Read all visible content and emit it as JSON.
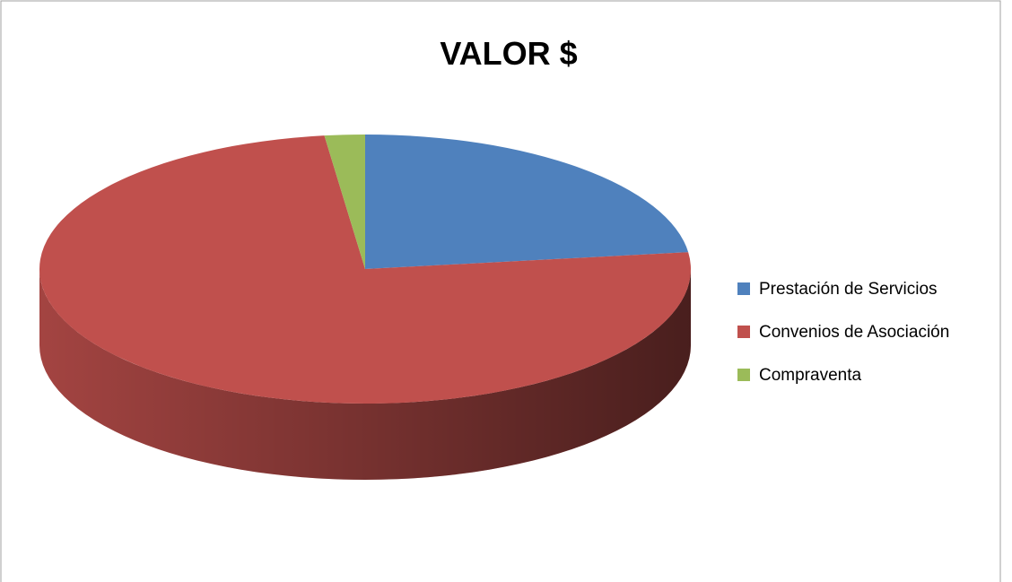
{
  "chart_data": {
    "type": "pie",
    "title": "VALOR $",
    "categories": [
      "Prestación de Servicios",
      "Convenios de Asociación",
      "Compraventa"
    ],
    "values": [
      23,
      75,
      2
    ],
    "colors": [
      "#4f81bd",
      "#c0504d",
      "#9bbb59"
    ],
    "legend": "right"
  }
}
